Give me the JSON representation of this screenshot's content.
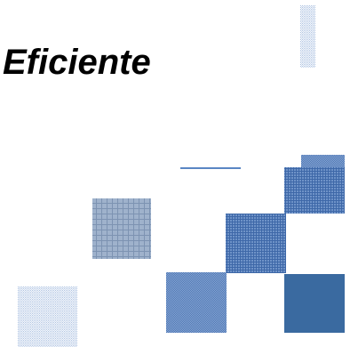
{
  "slide": {
    "title": "Eficiente"
  },
  "colors": {
    "accent": "#3f6aa6",
    "solid_square": "#3a6aa0",
    "light_pattern": "#b6c9e4",
    "mid_pattern": "#5b82bc",
    "line": "#5a86c4"
  }
}
